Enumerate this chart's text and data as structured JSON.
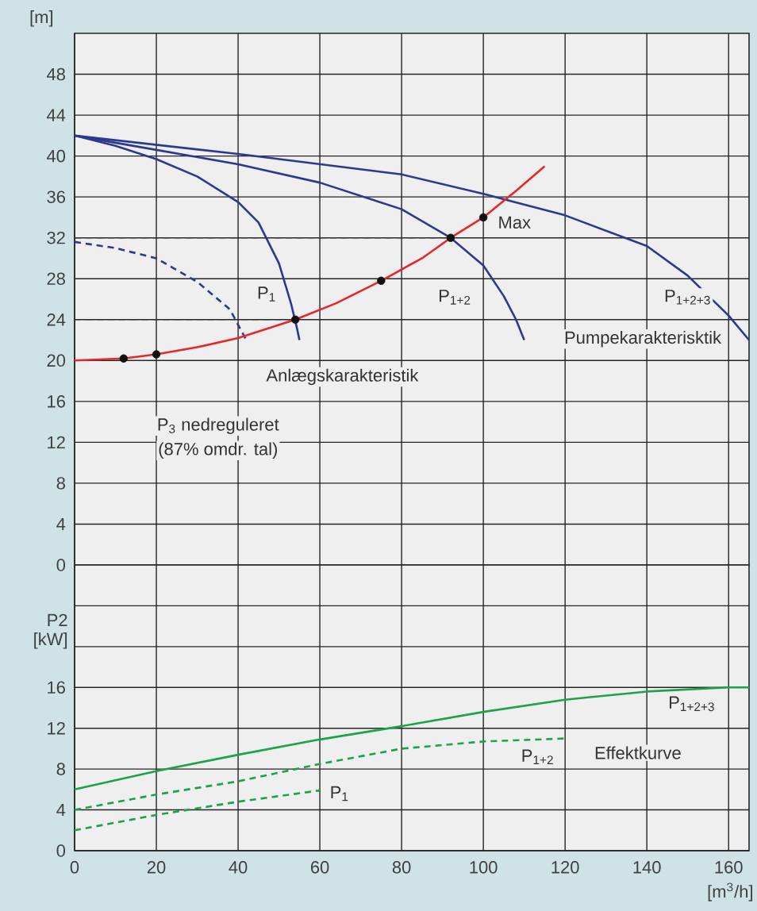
{
  "chart_data": [
    {
      "type": "line",
      "ylabel": "[m]",
      "xlim": [
        0,
        165
      ],
      "xticks": [
        0,
        20,
        40,
        60,
        80,
        100,
        120,
        140,
        160
      ],
      "ylim": [
        0,
        52
      ],
      "yticks": [
        0,
        4,
        8,
        12,
        16,
        20,
        24,
        28,
        32,
        36,
        40,
        44,
        48
      ],
      "tick_labels": "y",
      "grid": true,
      "series": [
        {
          "color": "#2b3990",
          "line_style": "solid",
          "x": [
            0,
            10,
            20,
            30,
            40,
            45,
            50,
            53,
            54.5,
            55
          ],
          "values": [
            42,
            41,
            39.7,
            38,
            35.5,
            33.5,
            29.5,
            25.5,
            23,
            22
          ]
        },
        {
          "color": "#2b3990",
          "line_style": "solid",
          "x": [
            0,
            20,
            40,
            60,
            80,
            92,
            100,
            105,
            108,
            110
          ],
          "values": [
            42,
            40.6,
            39.2,
            37.4,
            34.8,
            32,
            29.3,
            26.3,
            24,
            22
          ]
        },
        {
          "color": "#2b3990",
          "line_style": "solid",
          "x": [
            0,
            40,
            80,
            100,
            120,
            140,
            150,
            160,
            165
          ],
          "values": [
            42,
            40.2,
            38.2,
            36.3,
            34.2,
            31.2,
            28.3,
            24.4,
            22
          ]
        },
        {
          "color": "#2b3990",
          "line_style": "dashed",
          "x": [
            0,
            10,
            20,
            30,
            38,
            42
          ],
          "values": [
            31.6,
            31,
            30,
            27.7,
            25,
            22
          ]
        },
        {
          "color": "#333333",
          "line_style": "dashed",
          "x": [
            0,
            92
          ],
          "values": [
            32,
            32
          ]
        },
        {
          "color": "#333333",
          "line_style": "dashed",
          "x": [
            0,
            54
          ],
          "values": [
            24,
            24
          ]
        },
        {
          "color": "#e8262a",
          "line_style": "solid",
          "x": [
            0,
            12,
            20,
            30,
            40,
            54,
            64,
            75,
            85,
            92,
            100,
            108,
            115
          ],
          "values": [
            20,
            20.2,
            20.6,
            21.3,
            22.2,
            24,
            25.6,
            27.8,
            30,
            32,
            34,
            36.6,
            39
          ]
        },
        {
          "type": "scatter",
          "color": "#111111",
          "marker": "circle",
          "x": [
            12,
            20,
            54,
            75,
            92,
            100
          ],
          "values": [
            20.2,
            20.6,
            24,
            27.8,
            32,
            34
          ]
        }
      ],
      "annotations": [
        "P$_{1}$",
        "P$_{1+2}$",
        "P$_{1+2+3}$",
        "Max",
        "Pumpekarakterisktik",
        "Anlægskarakteristik",
        "P$_{3}$ nedreguleret",
        "(87% omdr. tal)"
      ]
    },
    {
      "type": "line",
      "ylabel": "P2 [kW]",
      "xlabel": "[m$^{3}$/h]",
      "xlim": [
        0,
        165
      ],
      "xticks": [
        0,
        20,
        40,
        60,
        80,
        100,
        120,
        140,
        160
      ],
      "ylim": [
        0,
        28
      ],
      "yticks": [
        0,
        4,
        8,
        12,
        16,
        {
          "value": 20,
          "label": null
        },
        {
          "value": 24,
          "label": null
        }
      ],
      "grid": true,
      "series": [
        {
          "color": "#1aa34a",
          "line_style": "solid",
          "x": [
            0,
            20,
            40,
            60,
            80,
            100,
            120,
            140,
            160,
            165
          ],
          "values": [
            6,
            7.8,
            9.4,
            10.9,
            12.2,
            13.6,
            14.8,
            15.6,
            16,
            16
          ]
        },
        {
          "color": "#1aa34a",
          "line_style": "dashed",
          "x": [
            0,
            20,
            40,
            60,
            80,
            100,
            120
          ],
          "values": [
            4,
            5.5,
            6.8,
            8.5,
            10,
            10.7,
            11
          ]
        },
        {
          "color": "#1aa34a",
          "line_style": "dashed",
          "x": [
            0,
            20,
            40,
            60
          ],
          "values": [
            2,
            3.5,
            4.8,
            5.9
          ]
        }
      ],
      "annotations": [
        "P$_{1+2+3}$",
        "Effektkurve",
        "P$_{1+2}$",
        "P$_{1}$"
      ]
    }
  ]
}
